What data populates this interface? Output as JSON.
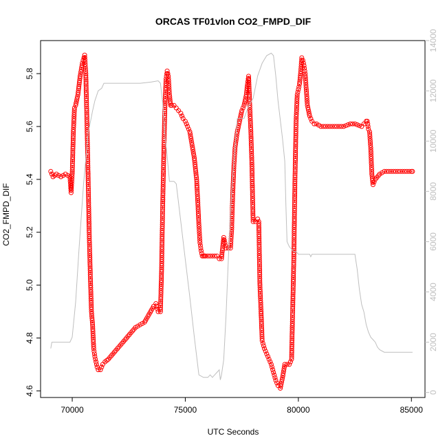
{
  "chart_data": {
    "type": "line",
    "title": "ORCAS TF01vlon CO2_FMPD_DIF",
    "xlabel": "UTC Seconds",
    "ylabel": "CO2_FMPD_DIF",
    "xlim": [
      68600,
      85600
    ],
    "ylim": [
      4.575,
      5.925
    ],
    "y2lim": [
      -200,
      14000
    ],
    "x_ticks": [
      70000,
      75000,
      80000,
      85000
    ],
    "y_ticks": [
      4.6,
      4.8,
      5.0,
      5.2,
      5.4,
      5.6,
      5.8
    ],
    "y2_ticks": [
      0,
      2000,
      4000,
      6000,
      8000,
      10000,
      12000,
      14000
    ],
    "colors": {
      "primary": "#ff0000",
      "secondary": "#bebebe",
      "axis": "#000000"
    },
    "series": [
      {
        "axis": "left",
        "style": "points-dash",
        "color": "#ff0000",
        "x": [
          69050,
          69150,
          69300,
          69500,
          69700,
          69900,
          69950,
          70000,
          70050,
          70100,
          70150,
          70250,
          70350,
          70450,
          70550,
          70600,
          70650,
          70700,
          70750,
          70800,
          70850,
          70900,
          70950,
          71000,
          71050,
          71100,
          71150,
          71250,
          71350,
          71450,
          71600,
          71800,
          72000,
          72200,
          72400,
          72600,
          72800,
          73000,
          73200,
          73400,
          73600,
          73700,
          73800,
          73900,
          73950,
          74000,
          74050,
          74100,
          74150,
          74200,
          74250,
          74300,
          74350,
          74400,
          74500,
          74600,
          74700,
          74800,
          74900,
          75000,
          75100,
          75200,
          75300,
          75400,
          75500,
          75550,
          75600,
          75650,
          75700,
          75750,
          75800,
          75850,
          75900,
          76000,
          76200,
          76400,
          76500,
          76600,
          76650,
          76700,
          76750,
          76800,
          76900,
          77000,
          77050,
          77100,
          77150,
          77200,
          77300,
          77400,
          77500,
          77600,
          77700,
          77750,
          77800,
          77850,
          77900,
          77950,
          78000,
          78100,
          78200,
          78250,
          78300,
          78350,
          78400,
          78500,
          78600,
          78700,
          78800,
          78900,
          79000,
          79100,
          79200,
          79300,
          79400,
          79600,
          79700,
          79800,
          79850,
          79900,
          79950,
          80000,
          80050,
          80100,
          80150,
          80200,
          80250,
          80300,
          80350,
          80400,
          80500,
          80600,
          80700,
          80800,
          81000,
          81500,
          82000,
          82300,
          82500,
          82800,
          82900,
          83000,
          83050,
          83100,
          83150,
          83200,
          83250,
          83300,
          83400,
          83600,
          83800,
          84000,
          84500,
          85000,
          85050
        ],
        "y": [
          5.43,
          5.41,
          5.42,
          5.41,
          5.42,
          5.41,
          5.35,
          5.42,
          5.58,
          5.67,
          5.68,
          5.72,
          5.79,
          5.84,
          5.87,
          5.8,
          5.62,
          5.42,
          5.2,
          5.04,
          4.9,
          4.85,
          4.76,
          4.73,
          4.71,
          4.69,
          4.68,
          4.68,
          4.7,
          4.71,
          4.72,
          4.74,
          4.76,
          4.78,
          4.8,
          4.82,
          4.84,
          4.85,
          4.86,
          4.89,
          4.92,
          4.93,
          4.9,
          4.9,
          5.05,
          5.3,
          5.5,
          5.68,
          5.78,
          5.81,
          5.79,
          5.72,
          5.68,
          5.68,
          5.68,
          5.67,
          5.66,
          5.65,
          5.63,
          5.62,
          5.6,
          5.58,
          5.53,
          5.48,
          5.4,
          5.32,
          5.23,
          5.16,
          5.13,
          5.11,
          5.11,
          5.11,
          5.11,
          5.11,
          5.11,
          5.11,
          5.1,
          5.1,
          5.14,
          5.18,
          5.16,
          5.14,
          5.14,
          5.14,
          5.21,
          5.35,
          5.45,
          5.52,
          5.58,
          5.62,
          5.66,
          5.68,
          5.72,
          5.76,
          5.79,
          5.68,
          5.58,
          5.44,
          5.24,
          5.24,
          5.25,
          5.24,
          5.0,
          4.9,
          4.79,
          4.76,
          4.74,
          4.72,
          4.7,
          4.67,
          4.64,
          4.62,
          4.61,
          4.65,
          4.7,
          4.7,
          4.72,
          5.1,
          5.4,
          5.62,
          5.72,
          5.74,
          5.76,
          5.8,
          5.86,
          5.85,
          5.83,
          5.8,
          5.74,
          5.68,
          5.64,
          5.62,
          5.61,
          5.61,
          5.6,
          5.6,
          5.6,
          5.61,
          5.61,
          5.6,
          5.61,
          5.62,
          5.62,
          5.59,
          5.58,
          5.52,
          5.42,
          5.38,
          5.4,
          5.42,
          5.43,
          5.43,
          5.43,
          5.43,
          5.43
        ]
      },
      {
        "axis": "right",
        "style": "line",
        "color": "#bebebe",
        "x": [
          69050,
          69100,
          69150,
          69300,
          69500,
          69700,
          69900,
          70000,
          70150,
          70300,
          70500,
          70700,
          70900,
          71000,
          71150,
          71300,
          71400,
          72000,
          72500,
          73000,
          73500,
          73800,
          73900,
          74000,
          74100,
          74200,
          74300,
          74500,
          74600,
          74800,
          75000,
          75200,
          75400,
          75600,
          75800,
          75900,
          76000,
          76100,
          76200,
          76300,
          76400,
          76500,
          76550,
          76600,
          76700,
          76800,
          76900,
          77000,
          77100,
          77200,
          77300,
          77400,
          77600,
          77800,
          78000,
          78200,
          78400,
          78600,
          78800,
          78900,
          79000,
          79100,
          79300,
          79400,
          79450,
          79500,
          79600,
          79700,
          79800,
          79900,
          80000,
          80100,
          80200,
          80300,
          80400,
          80500,
          80550,
          80600,
          80700,
          80800,
          81000,
          81500,
          82000,
          82500,
          82600,
          82700,
          82800,
          82900,
          83000,
          83100,
          83200,
          83300,
          83400,
          83500,
          83600,
          83800,
          84000,
          84500,
          85000,
          85050
        ],
        "y": [
          1750,
          2000,
          2000,
          2000,
          2000,
          2000,
          2000,
          2200,
          3600,
          5700,
          8300,
          10300,
          11200,
          11600,
          12000,
          12100,
          12300,
          12300,
          12300,
          12300,
          12350,
          12400,
          12300,
          11500,
          10200,
          9400,
          8400,
          8400,
          8300,
          6800,
          5300,
          3800,
          2200,
          700,
          600,
          600,
          600,
          700,
          600,
          700,
          800,
          900,
          500,
          700,
          1300,
          3000,
          5200,
          7200,
          8600,
          9800,
          10900,
          10900,
          10900,
          11400,
          11700,
          12600,
          13100,
          13400,
          13500,
          13400,
          12600,
          11600,
          10100,
          9200,
          7400,
          6000,
          5800,
          5700,
          5600,
          5600,
          5500,
          5500,
          5500,
          5500,
          5500,
          5500,
          5400,
          5500,
          5500,
          5500,
          5500,
          5500,
          5500,
          5500,
          4900,
          4100,
          3500,
          3200,
          2700,
          2400,
          2200,
          2100,
          2000,
          1800,
          1700,
          1600,
          1600,
          1600,
          1600,
          1600
        ]
      }
    ]
  }
}
